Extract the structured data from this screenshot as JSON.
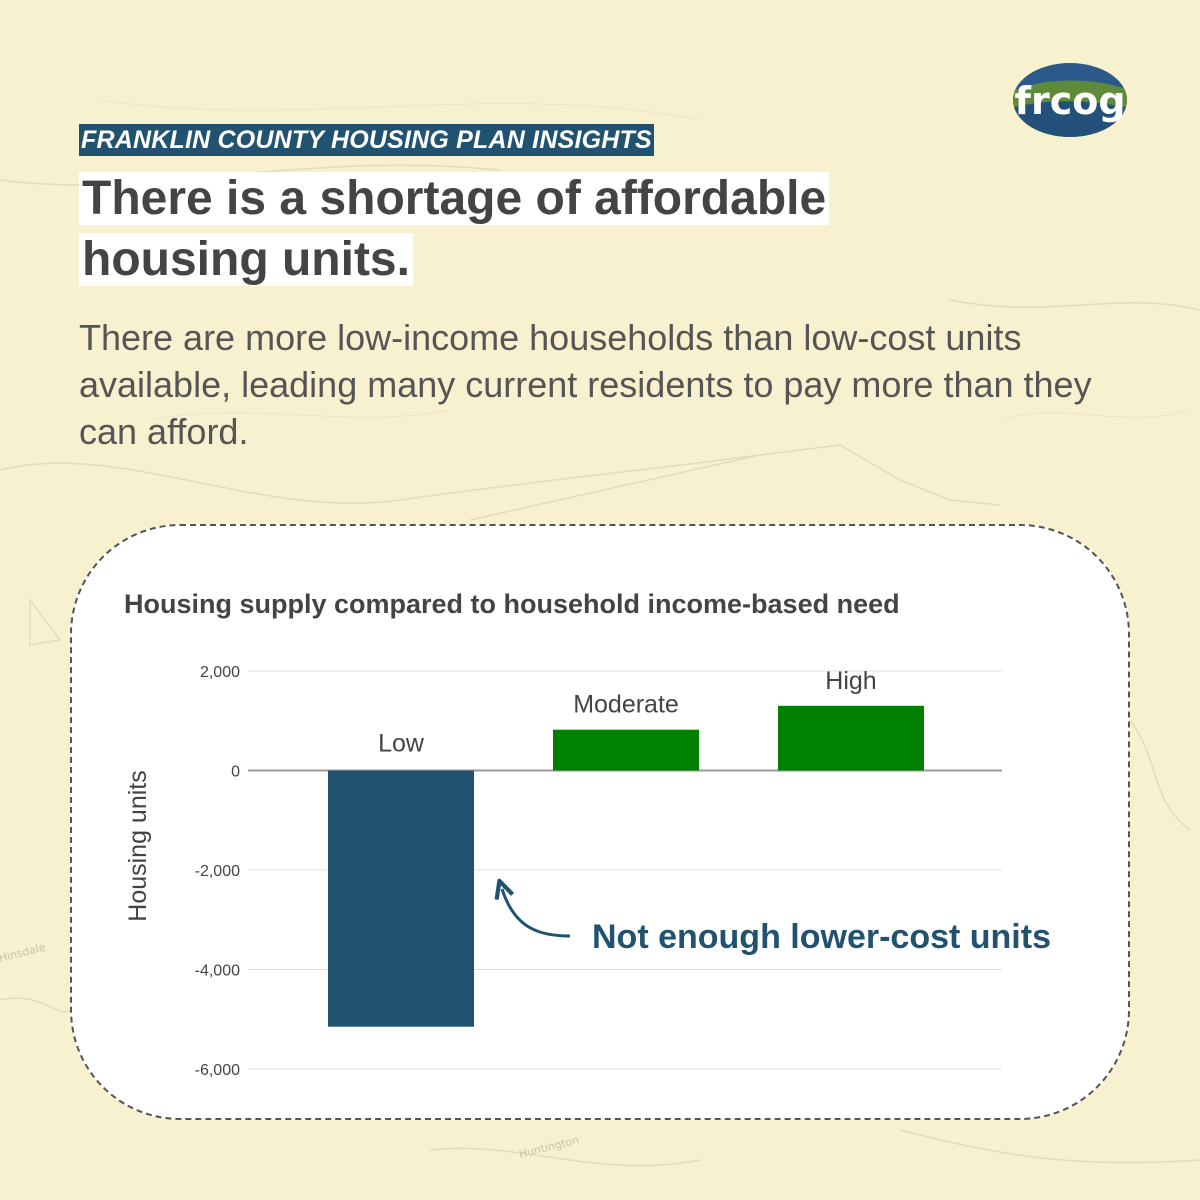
{
  "header": {
    "kicker": "FRANKLIN COUNTY HOUSING PLAN INSIGHTS",
    "headline": "There is a shortage of affordable housing units.",
    "subtitle": "There are more low-income households than low-cost units available, leading many current residents to pay more than they can afford."
  },
  "logo": {
    "text": "frcog"
  },
  "background_map": {
    "labels": [
      "Hinsdale",
      "Huntington"
    ]
  },
  "colors": {
    "deficit": "#215371",
    "surplus": "#008000",
    "accent": "#215371"
  },
  "chart_data": {
    "type": "bar",
    "title": "Housing supply compared to household income-based need",
    "xlabel": "",
    "ylabel": "Housing units",
    "ylim": [
      -6000,
      2000
    ],
    "yticks": [
      2000,
      0,
      -2000,
      -4000,
      -6000
    ],
    "ytick_labels": [
      "2,000",
      "0",
      "-2,000",
      "-4,000",
      "-6,000"
    ],
    "grid": true,
    "categories": [
      "Low",
      "Moderate",
      "High"
    ],
    "values": [
      -5150,
      820,
      1300
    ],
    "annotation": {
      "text": "Not enough lower-cost units",
      "target": "Low"
    }
  }
}
